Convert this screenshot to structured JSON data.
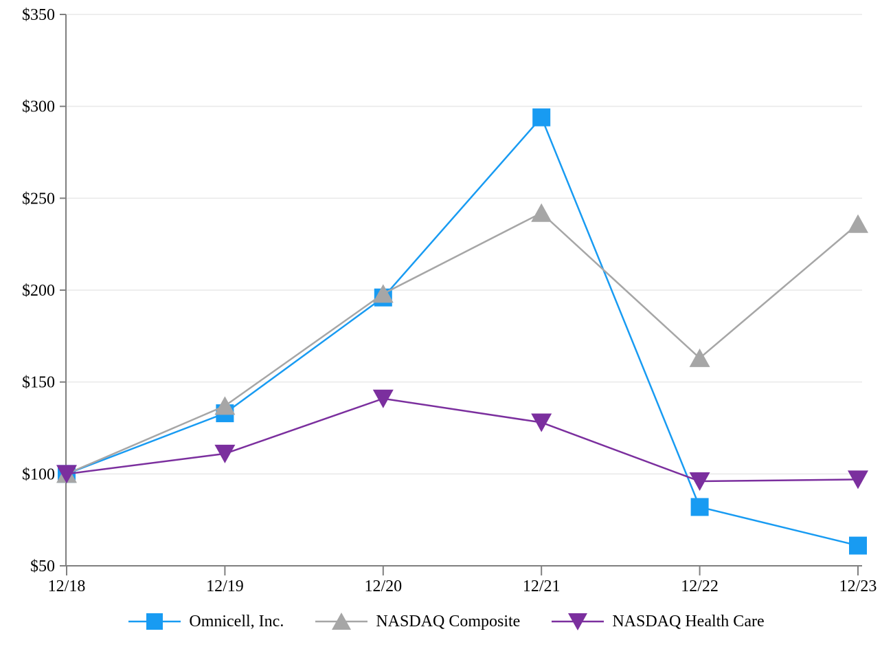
{
  "chart_data": {
    "type": "line",
    "categories": [
      "12/18",
      "12/19",
      "12/20",
      "12/21",
      "12/22",
      "12/23"
    ],
    "series": [
      {
        "name": "Omnicell, Inc.",
        "marker": "square",
        "color": "#189bf2",
        "values": [
          100,
          133,
          196,
          294,
          82,
          61
        ]
      },
      {
        "name": "NASDAQ Composite",
        "marker": "triangle-up",
        "color": "#a6a6a6",
        "values": [
          100,
          137,
          198,
          242,
          163,
          236
        ]
      },
      {
        "name": "NASDAQ Health Care",
        "marker": "triangle-down",
        "color": "#7b2f9e",
        "values": [
          100,
          111,
          141,
          128,
          96,
          97
        ]
      }
    ],
    "title": "",
    "xlabel": "",
    "ylabel": "",
    "ylim": [
      50,
      350
    ],
    "ytick_step": 50,
    "y_tick_labels": [
      "$50",
      "$100",
      "$150",
      "$200",
      "$250",
      "$300",
      "$350"
    ],
    "grid": "horizontal",
    "legend_position": "bottom"
  },
  "colors": {
    "axis": "#7f7f7f",
    "gridline": "#e9e9e9",
    "text": "#000000",
    "background": "#ffffff"
  }
}
